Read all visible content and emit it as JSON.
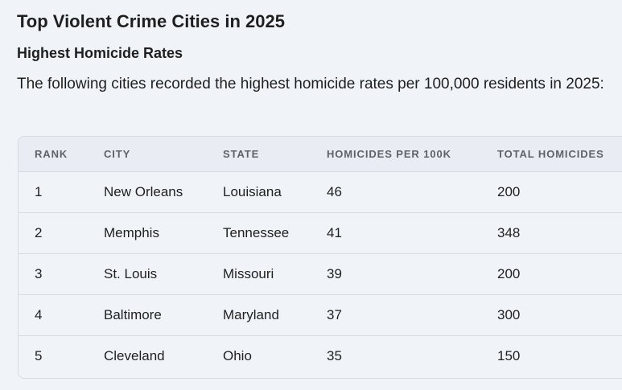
{
  "page": {
    "title": "Top Violent Crime Cities in 2025",
    "section_heading": "Highest Homicide Rates",
    "intro": "The following cities recorded the highest homicide rates per 100,000 residents in 2025:"
  },
  "table": {
    "headers": [
      "RANK",
      "CITY",
      "STATE",
      "HOMICIDES PER 100K",
      "TOTAL HOMICIDES"
    ],
    "rows": [
      [
        "1",
        "New Orleans",
        "Louisiana",
        "46",
        "200"
      ],
      [
        "2",
        "Memphis",
        "Tennessee",
        "41",
        "348"
      ],
      [
        "3",
        "St. Louis",
        "Missouri",
        "39",
        "200"
      ],
      [
        "4",
        "Baltimore",
        "Maryland",
        "37",
        "300"
      ],
      [
        "5",
        "Cleveland",
        "Ohio",
        "35",
        "150"
      ]
    ]
  }
}
